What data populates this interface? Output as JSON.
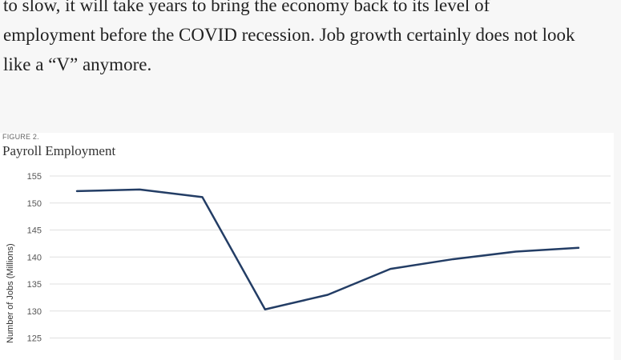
{
  "article": {
    "line1": "to slow, it will take years to bring the economy back to its level of",
    "line2": "employment before the COVID recession. Job growth certainly does not look",
    "line3": "like a “V” anymore."
  },
  "figure": {
    "label": "FIGURE 2.",
    "title": "Payroll Employment",
    "line_color": "#233d65",
    "grid_color": "#e0e0e0"
  },
  "chart_data": {
    "type": "line",
    "title": "Payroll Employment",
    "xlabel": "",
    "ylabel": "Number of Jobs (Millions)",
    "ylim": [
      120,
      155
    ],
    "yticks": [
      125,
      130,
      135,
      140,
      145,
      150,
      155
    ],
    "grid": true,
    "x": [
      1,
      2,
      3,
      4,
      5,
      6,
      7,
      8,
      9
    ],
    "series": [
      {
        "values": [
          152.2,
          152.5,
          151.1,
          130.3,
          133.0,
          137.8,
          139.6,
          141.0,
          141.7
        ]
      }
    ]
  }
}
